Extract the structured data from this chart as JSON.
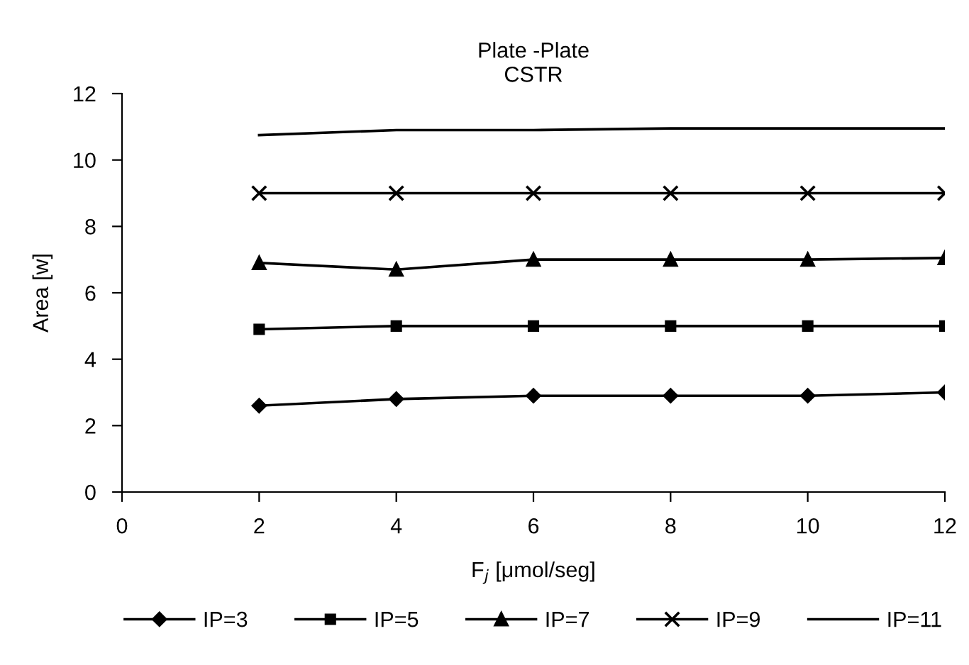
{
  "chart_data": {
    "type": "line",
    "title": "Plate -Plate\nCSTR",
    "xlabel": "F$_{j}$ [μmol/seg]",
    "ylabel": "Area [w]",
    "x": [
      2,
      4,
      6,
      8,
      10,
      12
    ],
    "xlim": [
      0,
      12
    ],
    "xticks": [
      0,
      2,
      4,
      6,
      8,
      10,
      12
    ],
    "ylim": [
      0,
      12
    ],
    "yticks": [
      0,
      2,
      4,
      6,
      8,
      10,
      12
    ],
    "grid": false,
    "legend": "bottom",
    "line_style": "solid",
    "series": [
      {
        "name": "IP=3",
        "color": "#000000",
        "marker": "diamond",
        "values": [
          2.6,
          2.8,
          2.9,
          2.9,
          2.9,
          3.0
        ]
      },
      {
        "name": "IP=5",
        "color": "#000000",
        "marker": "square",
        "values": [
          4.9,
          5.0,
          5.0,
          5.0,
          5.0,
          5.0
        ]
      },
      {
        "name": "IP=7",
        "color": "#000000",
        "marker": "triangle",
        "values": [
          6.9,
          6.7,
          7.0,
          7.0,
          7.0,
          7.05
        ]
      },
      {
        "name": "IP=9",
        "color": "#000000",
        "marker": "cross",
        "values": [
          9.0,
          9.0,
          9.0,
          9.0,
          9.0,
          9.0
        ]
      },
      {
        "name": "IP=11",
        "color": "#000000",
        "marker": "none",
        "values": [
          10.75,
          10.9,
          10.9,
          10.95,
          10.95,
          10.95
        ]
      }
    ]
  }
}
